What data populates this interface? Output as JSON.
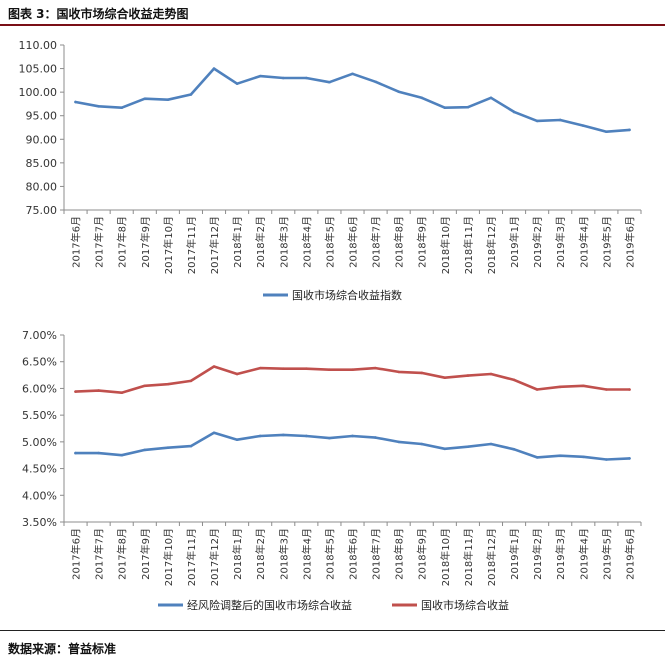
{
  "header": {
    "title": "图表 3：国收市场综合收益走势图"
  },
  "footer": {
    "source": "数据来源：普益标准"
  },
  "chart_data": [
    {
      "type": "line",
      "categories": [
        "2017年6月",
        "2017年7月",
        "2017年8月",
        "2017年9月",
        "2017年10月",
        "2017年11月",
        "2017年12月",
        "2018年1月",
        "2018年2月",
        "2018年3月",
        "2018年4月",
        "2018年5月",
        "2018年6月",
        "2018年7月",
        "2018年8月",
        "2018年9月",
        "2018年10月",
        "2018年11月",
        "2018年12月",
        "2019年1月",
        "2019年2月",
        "2019年3月",
        "2019年4月",
        "2019年5月",
        "2019年6月"
      ],
      "series": [
        {
          "name": "国收市场综合收益指数",
          "color": "#4f81bd",
          "values": [
            97.9,
            97.0,
            96.7,
            98.6,
            98.4,
            99.5,
            105.0,
            101.8,
            103.4,
            103.0,
            103.0,
            102.1,
            103.9,
            102.2,
            100.1,
            98.8,
            96.7,
            96.8,
            98.8,
            95.8,
            93.9,
            94.1,
            92.9,
            91.6,
            92.0
          ]
        }
      ],
      "ylim": [
        75,
        110
      ],
      "yticks": [
        "75.00",
        "80.00",
        "85.00",
        "90.00",
        "95.00",
        "100.00",
        "105.00",
        "110.00"
      ],
      "legend": "bottom"
    },
    {
      "type": "line",
      "categories": [
        "2017年6月",
        "2017年7月",
        "2017年8月",
        "2017年9月",
        "2017年10月",
        "2017年11月",
        "2017年12月",
        "2018年1月",
        "2018年2月",
        "2018年3月",
        "2018年4月",
        "2018年5月",
        "2018年6月",
        "2018年7月",
        "2018年8月",
        "2018年9月",
        "2018年10月",
        "2018年11月",
        "2018年12月",
        "2019年1月",
        "2019年2月",
        "2019年3月",
        "2019年4月",
        "2019年5月",
        "2019年6月"
      ],
      "series": [
        {
          "name": "经风险调整后的国收市场综合收益",
          "color": "#4f81bd",
          "values": [
            4.79,
            4.79,
            4.75,
            4.85,
            4.89,
            4.92,
            5.17,
            5.04,
            5.11,
            5.13,
            5.11,
            5.07,
            5.11,
            5.08,
            5.0,
            4.96,
            4.87,
            4.91,
            4.96,
            4.86,
            4.71,
            4.74,
            4.72,
            4.67,
            4.69
          ]
        },
        {
          "name": "国收市场综合收益",
          "color": "#c0504d",
          "values": [
            5.94,
            5.96,
            5.92,
            6.05,
            6.08,
            6.14,
            6.41,
            6.27,
            6.38,
            6.37,
            6.37,
            6.35,
            6.35,
            6.38,
            6.31,
            6.29,
            6.2,
            6.24,
            6.27,
            6.16,
            5.98,
            6.03,
            6.05,
            5.98,
            5.98
          ]
        }
      ],
      "ylim": [
        3.5,
        7.0
      ],
      "yticks": [
        "3.50%",
        "4.00%",
        "4.50%",
        "5.00%",
        "5.50%",
        "6.00%",
        "6.50%",
        "7.00%"
      ],
      "legend": "bottom"
    }
  ]
}
